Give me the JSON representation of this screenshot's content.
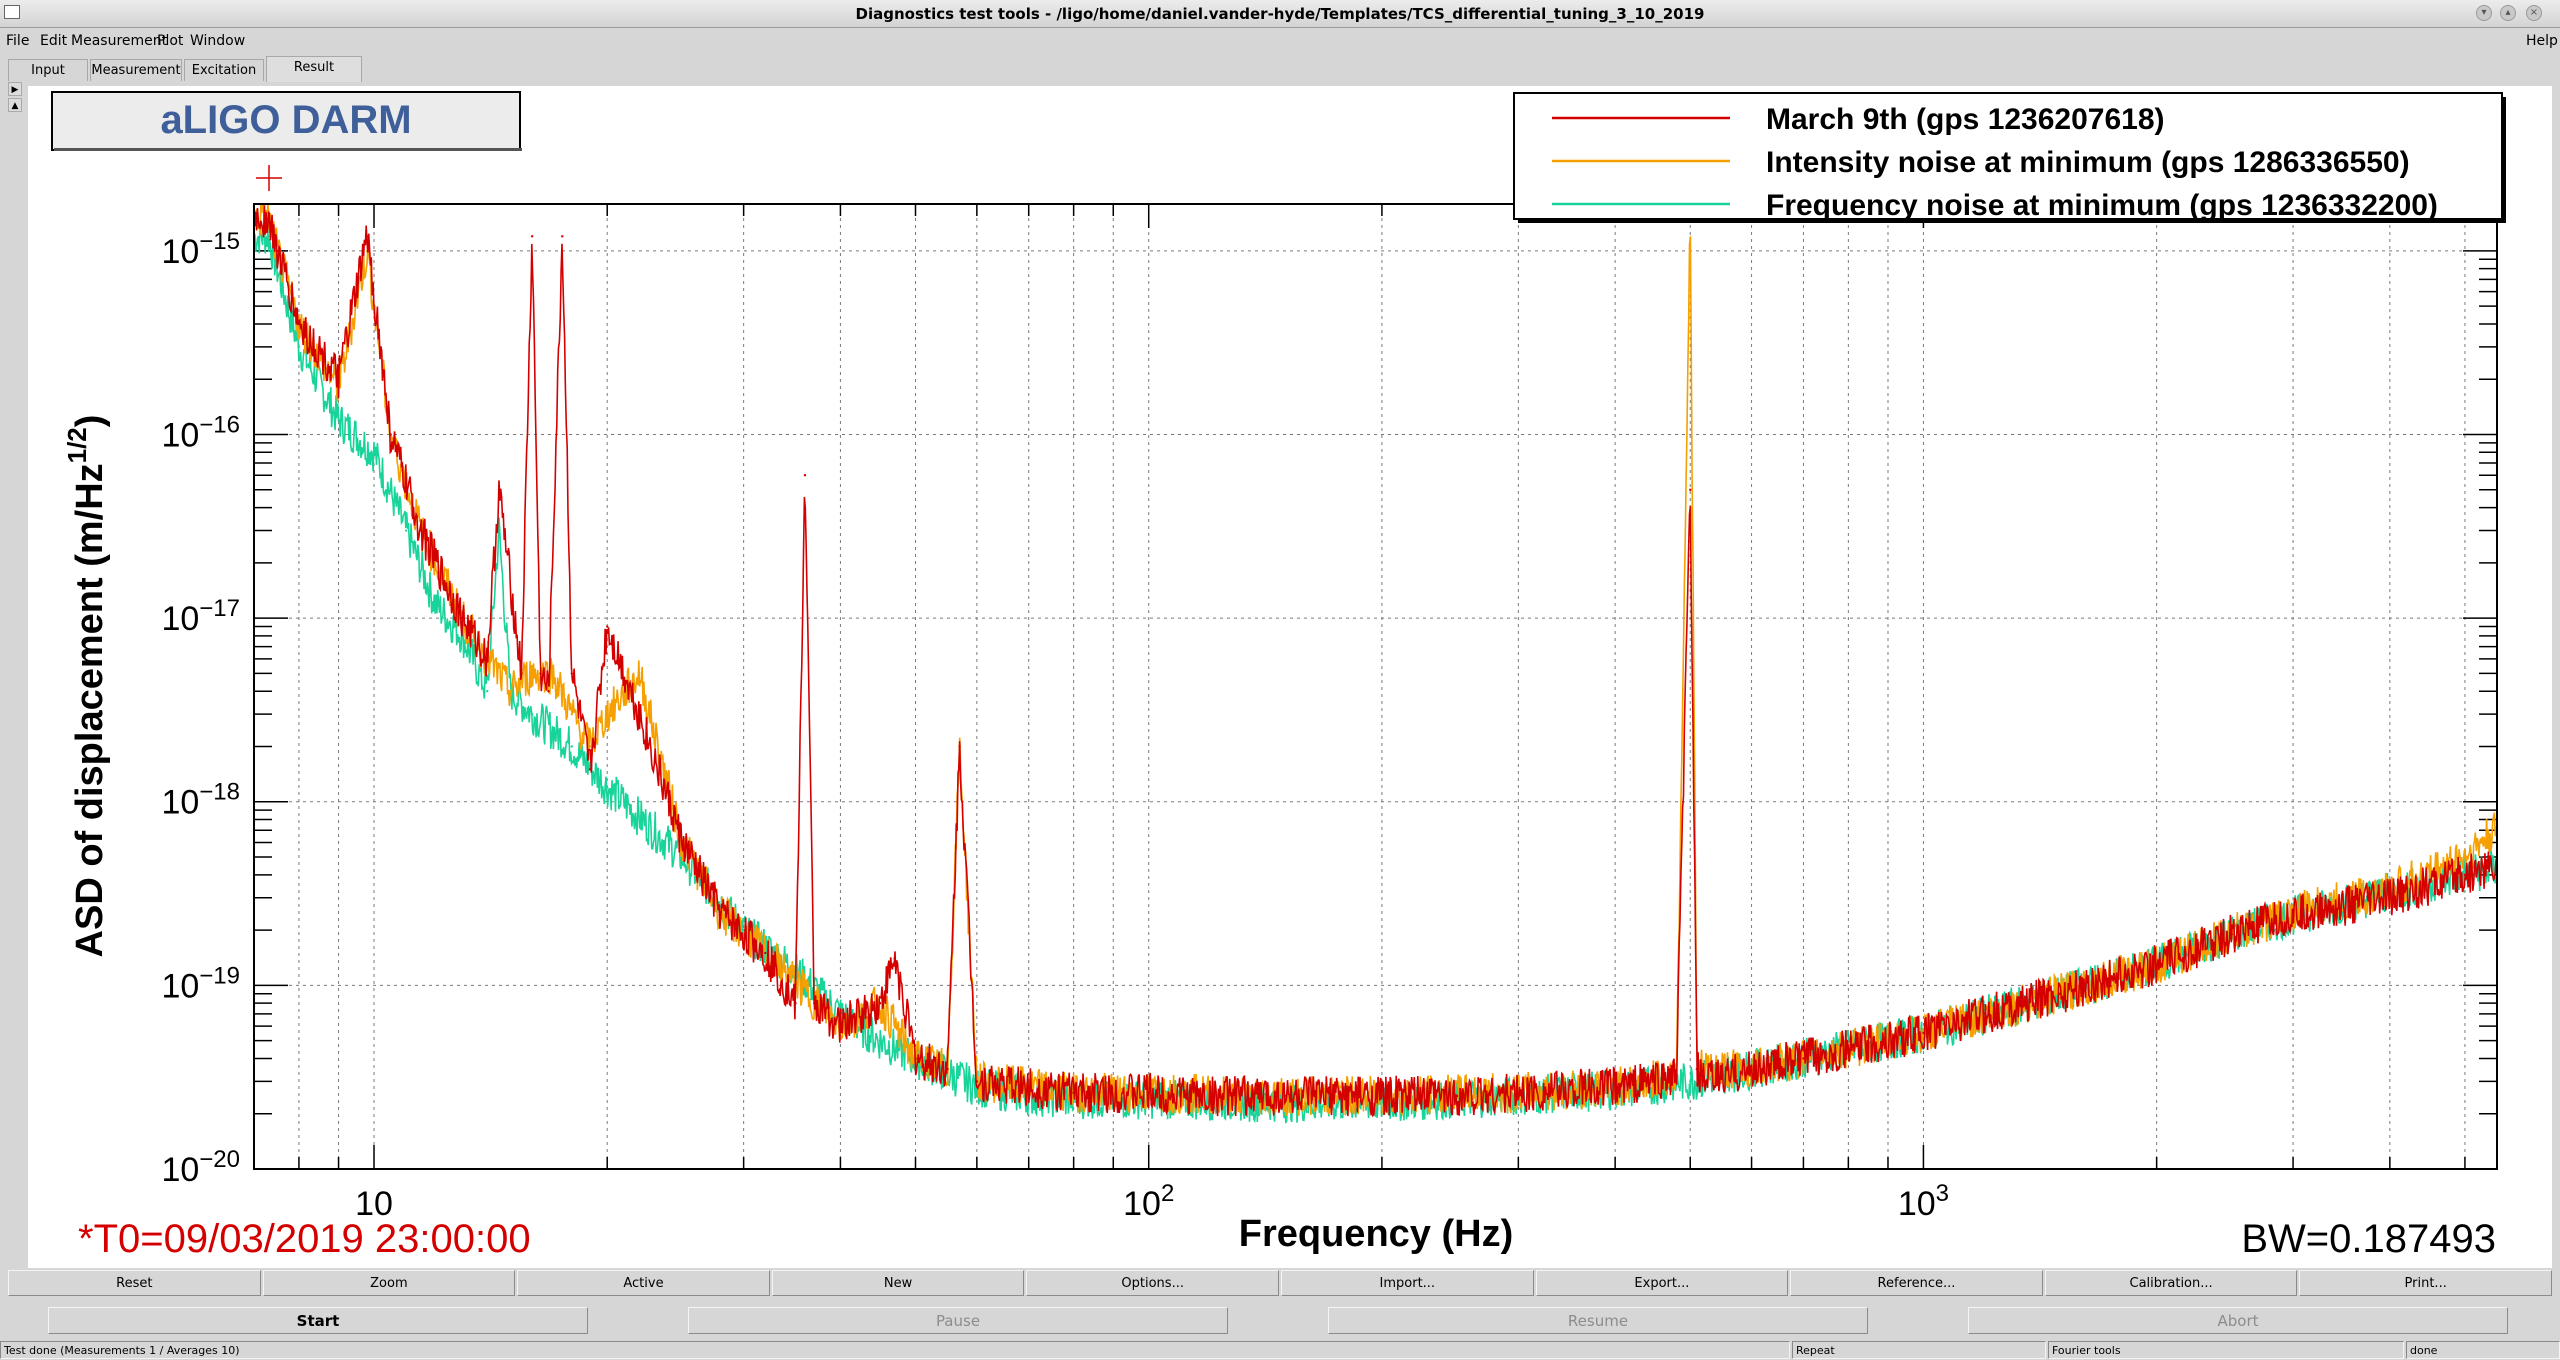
{
  "window": {
    "title": "Diagnostics test tools - /ligo/home/daniel.vander-hyde/Templates/TCS_differential_tuning_3_10_2019"
  },
  "menu": {
    "file": "File",
    "edit": "Edit",
    "measurement": "Measurement",
    "plot": "Plot",
    "window": "Window",
    "help": "Help"
  },
  "tabs": [
    "Input",
    "Measurement",
    "Excitation",
    "Result"
  ],
  "active_tab": "Result",
  "plot": {
    "title_box": "aLIGO DARM",
    "t0": "*T0=09/03/2019 23:00:00",
    "bw": "BW=0.187493"
  },
  "buttons_row1": [
    "Reset",
    "Zoom",
    "Active",
    "New",
    "Options...",
    "Import...",
    "Export...",
    "Reference...",
    "Calibration...",
    "Print..."
  ],
  "buttons_row2": [
    "Start",
    "Pause",
    "Resume",
    "Abort"
  ],
  "status": {
    "message": "Test done (Measurements 1 / Averages 10)",
    "mode": "Repeat",
    "tool": "Fourier tools",
    "state": "done"
  },
  "colors": {
    "march": "#d40000",
    "intensity": "#f5a000",
    "frequency": "#19d49a",
    "label_red": "#d40000",
    "title_blue": "#3e5f9a"
  },
  "chart_data": {
    "type": "line",
    "xscale": "log",
    "yscale": "log",
    "xlabel": "Frequency (Hz)",
    "ylabel": "ASD of displacement (m/Hz^1/2)",
    "xlim": [
      7,
      5500
    ],
    "ylim": [
      1e-20,
      1.8e-15
    ],
    "x_ticks": [
      "10",
      "10^2",
      "10^3"
    ],
    "y_ticks": [
      "10^-20",
      "10^-19",
      "10^-18",
      "10^-17",
      "10^-16",
      "10^-15"
    ],
    "grid": true,
    "legend": "top-right",
    "series": [
      {
        "name": "March 9th (gps 1236207618)",
        "color": "#d40000",
        "x": [
          7.3,
          8,
          9,
          9.8,
          10.5,
          11.5,
          13,
          14,
          14.5,
          15.5,
          16,
          16.4,
          16.8,
          17.5,
          18,
          19,
          20,
          22,
          25,
          28,
          32,
          35,
          36,
          37,
          40,
          45,
          47,
          50,
          55,
          57,
          60,
          70,
          80,
          100,
          120,
          150,
          180,
          200,
          250,
          300,
          400,
          480,
          500,
          510,
          520,
          600,
          700,
          800,
          1000,
          1200,
          1500,
          2000,
          2500,
          3000,
          4000,
          5000,
          5500
        ],
        "y": [
          1.5e-15,
          4e-16,
          2e-16,
          1.2e-15,
          1e-16,
          3e-17,
          1e-17,
          6e-18,
          5e-17,
          5e-18,
          1.2e-15,
          5e-18,
          4e-18,
          1.2e-15,
          5e-18,
          1.5e-18,
          9e-18,
          3e-18,
          6e-19,
          2.5e-19,
          1.5e-19,
          8e-20,
          6e-17,
          8e-20,
          6e-20,
          8e-20,
          1.4e-19,
          4e-20,
          3.5e-20,
          2e-18,
          3e-20,
          2.8e-20,
          2.6e-20,
          2.6e-20,
          2.5e-20,
          2.5e-20,
          2.5e-20,
          2.5e-20,
          2.5e-20,
          2.6e-20,
          2.8e-20,
          3.2e-20,
          5e-17,
          3.5e-20,
          3e-20,
          3.5e-20,
          4e-20,
          4.5e-20,
          5.5e-20,
          7e-20,
          9e-20,
          1.3e-19,
          1.9e-19,
          2.4e-19,
          3e-19,
          4e-19,
          4.5e-19
        ]
      },
      {
        "name": "Intensity noise at minimum (gps 1286336550)",
        "color": "#f5a000",
        "x": [
          7.3,
          8,
          9,
          9.8,
          10.5,
          11.5,
          13,
          14,
          15,
          16,
          17,
          18,
          19,
          20,
          22,
          25,
          28,
          32,
          40,
          45,
          50,
          55,
          57,
          60,
          70,
          80,
          100,
          150,
          200,
          300,
          400,
          480,
          500,
          510,
          600,
          800,
          1000,
          1500,
          2000,
          2500,
          3000,
          4000,
          5000,
          5500
        ],
        "y": [
          1.5e-15,
          4e-16,
          1.8e-16,
          1e-15,
          1e-16,
          3e-17,
          1e-17,
          6e-18,
          4e-18,
          5e-18,
          5e-18,
          3e-18,
          2e-18,
          3e-18,
          5e-18,
          6e-19,
          2.5e-19,
          1.5e-19,
          6e-20,
          8e-20,
          4e-20,
          3.5e-20,
          2e-18,
          3e-20,
          2.8e-20,
          2.6e-20,
          2.6e-20,
          2.5e-20,
          2.5e-20,
          2.6e-20,
          2.8e-20,
          3.2e-20,
          1.5e-15,
          3.5e-20,
          3.5e-20,
          4.5e-20,
          5.5e-20,
          9e-20,
          1.3e-19,
          1.9e-19,
          2.5e-19,
          3.3e-19,
          5e-19,
          7e-19
        ]
      },
      {
        "name": "Frequency noise at minimum (gps 1236332200)",
        "color": "#19d49a",
        "x": [
          7.3,
          8,
          9,
          10,
          11,
          12,
          13,
          14,
          14.5,
          15,
          16,
          18,
          20,
          25,
          30,
          35,
          40,
          45,
          50,
          60,
          70,
          80,
          100,
          150,
          200,
          300,
          400,
          500,
          600,
          800,
          1000,
          1500,
          2000,
          2500,
          3000,
          4000,
          5000,
          5500
        ],
        "y": [
          1.2e-15,
          3e-16,
          1.2e-16,
          8e-17,
          3e-17,
          1.2e-17,
          8e-18,
          4e-18,
          3e-17,
          4e-18,
          3e-18,
          2e-18,
          1.2e-18,
          5e-19,
          2e-19,
          1.2e-19,
          7e-20,
          5e-20,
          4e-20,
          2.8e-20,
          2.5e-20,
          2.4e-20,
          2.4e-20,
          2.3e-20,
          2.3e-20,
          2.5e-20,
          2.7e-20,
          3e-20,
          3.5e-20,
          4.5e-20,
          5.5e-20,
          9e-20,
          1.3e-19,
          1.9e-19,
          2.4e-19,
          3.2e-19,
          4e-19,
          4.3e-19
        ]
      }
    ]
  }
}
